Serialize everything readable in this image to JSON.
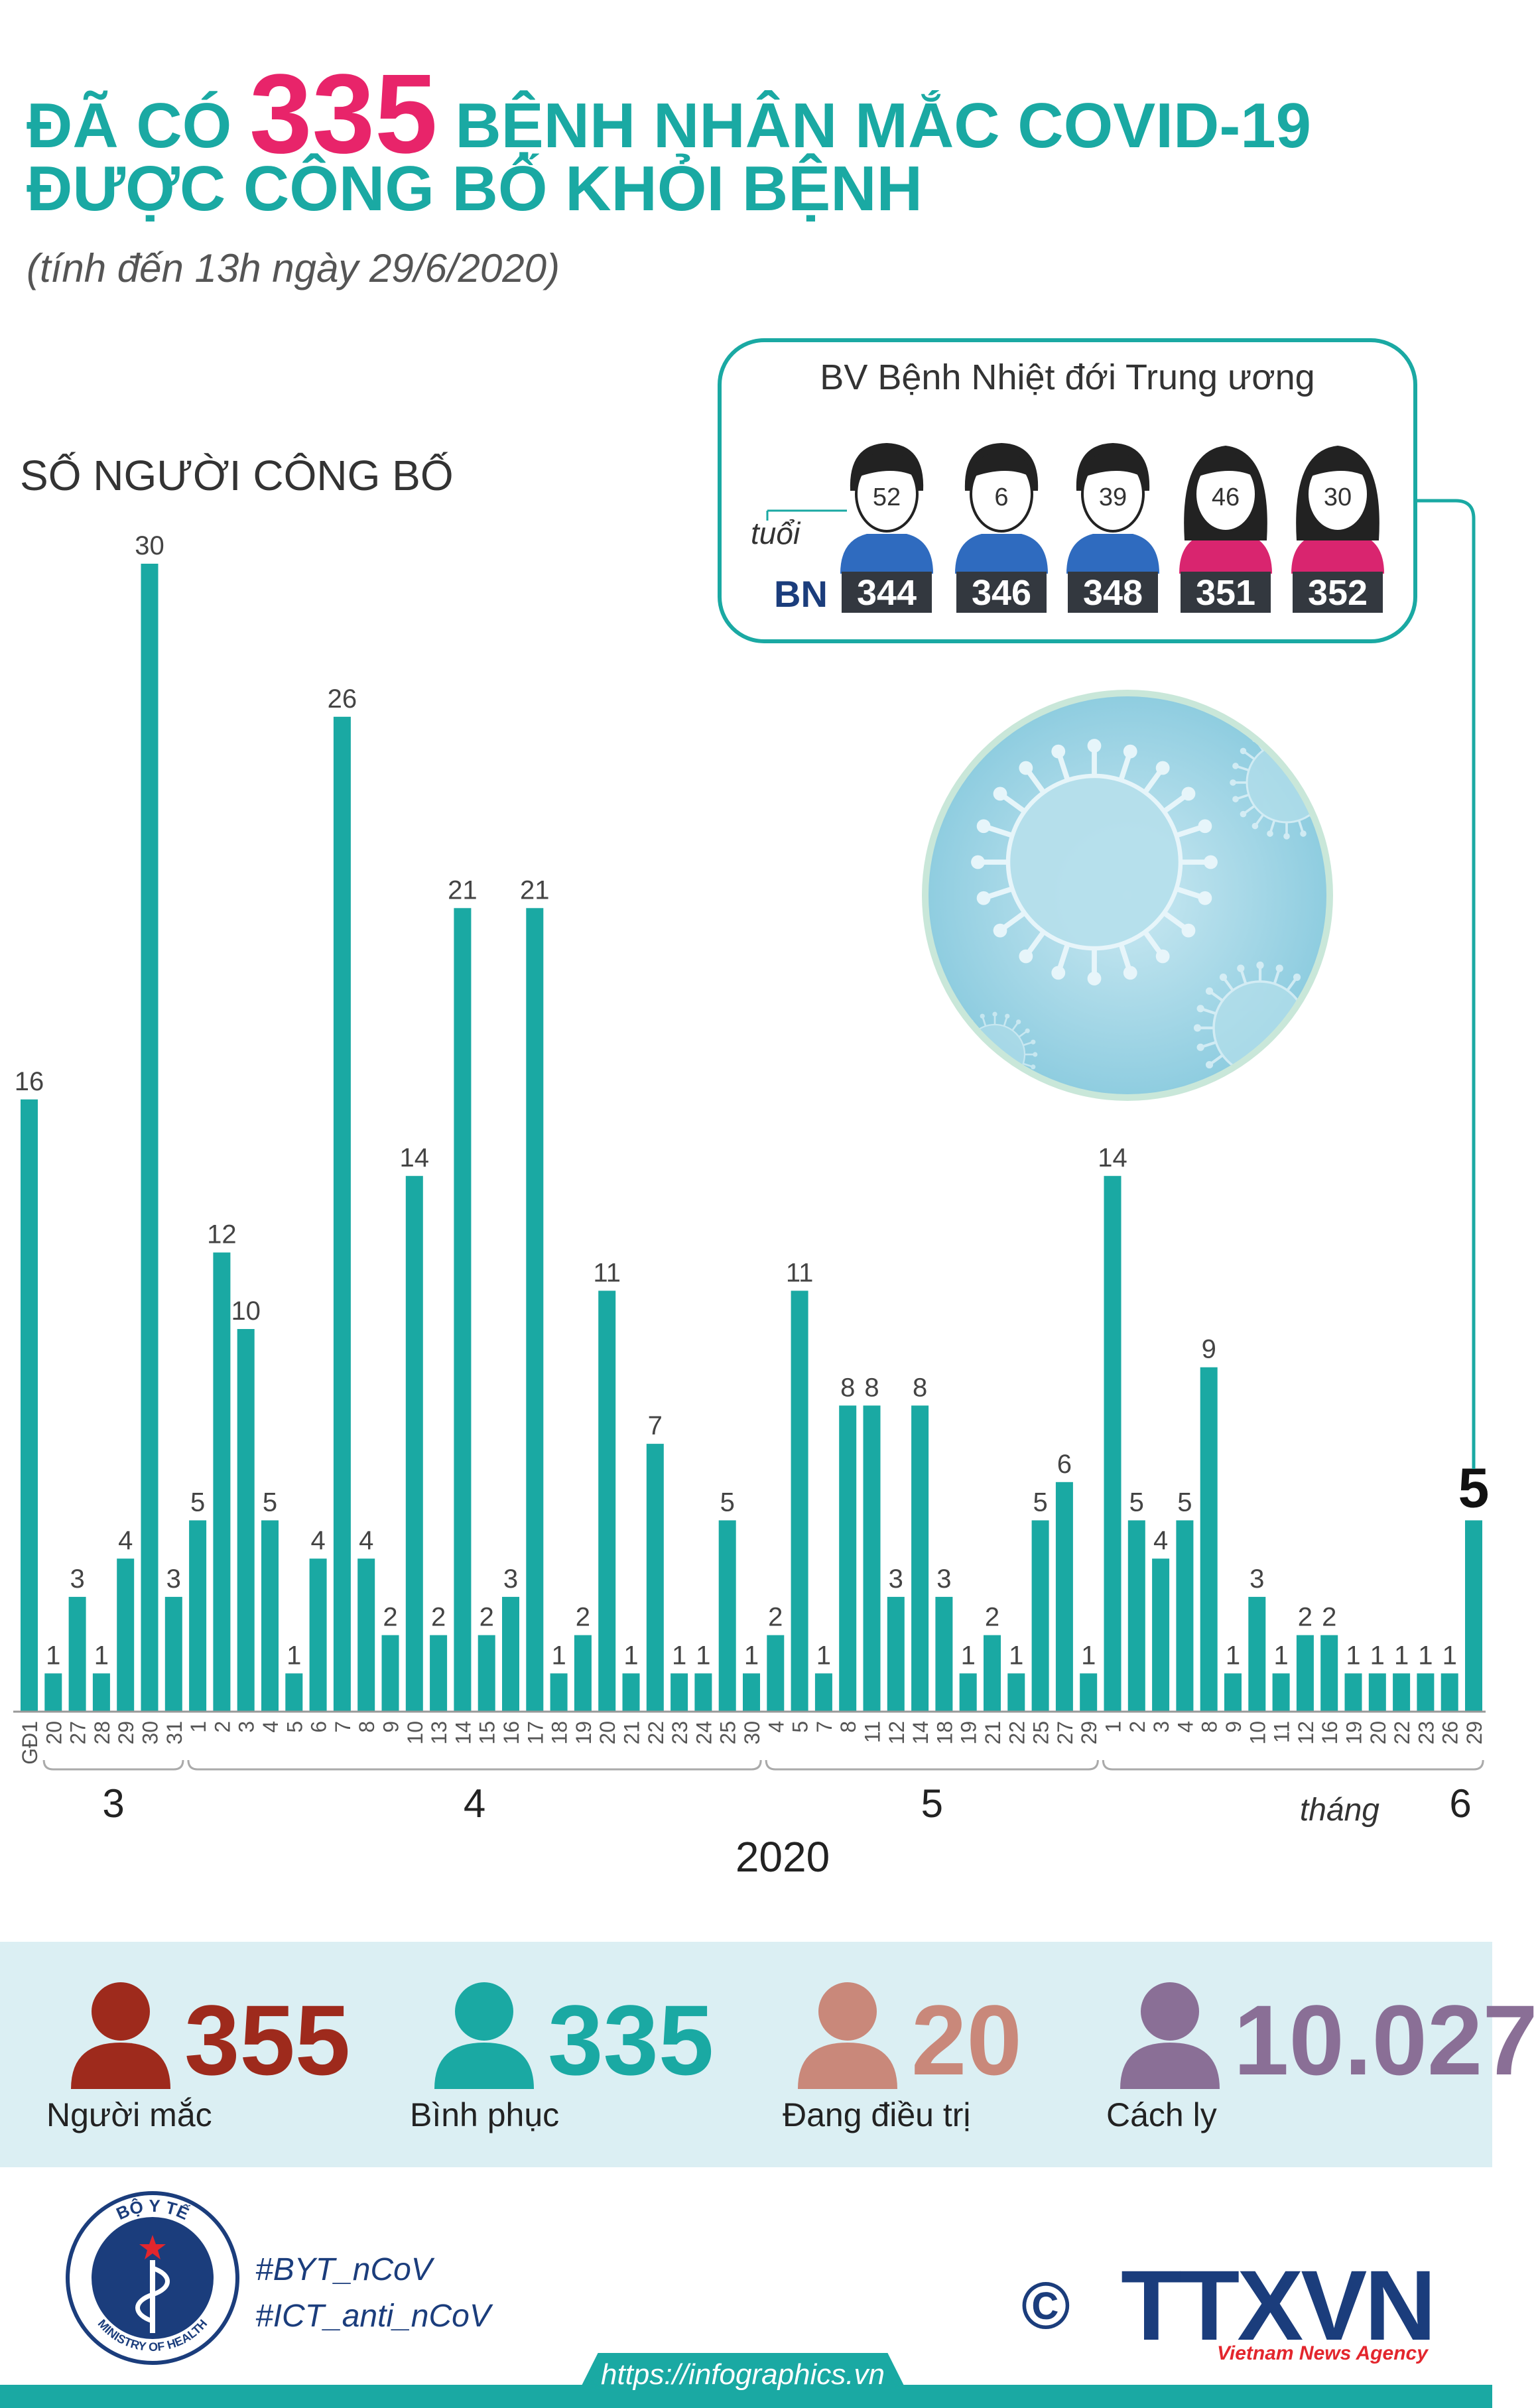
{
  "header": {
    "title_pre": "ĐÃ CÓ",
    "title_number": "335",
    "title_post": "BỆNH NHÂN MẮC COVID-19",
    "title_line2": "ĐƯỢC CÔNG BỐ KHỎI BỆNH",
    "subtitle": "(tính đến 13h ngày 29/6/2020)"
  },
  "chart_data": {
    "type": "bar",
    "ylabel": "SỐ NGƯỜI CÔNG BỐ",
    "categories": [
      "GĐ1",
      "20",
      "27",
      "28",
      "29",
      "30",
      "31",
      "1",
      "2",
      "3",
      "4",
      "5",
      "6",
      "7",
      "8",
      "9",
      "10",
      "13",
      "14",
      "15",
      "16",
      "17",
      "18",
      "19",
      "20",
      "21",
      "22",
      "23",
      "24",
      "25",
      "30",
      "4",
      "5",
      "7",
      "8",
      "11",
      "12",
      "14",
      "18",
      "19",
      "21",
      "22",
      "25",
      "27",
      "29",
      "1",
      "2",
      "3",
      "4",
      "8",
      "9",
      "10",
      "11",
      "12",
      "16",
      "19",
      "20",
      "22",
      "23",
      "26",
      "29"
    ],
    "values": [
      16,
      1,
      3,
      1,
      4,
      30,
      3,
      5,
      12,
      10,
      5,
      1,
      4,
      26,
      4,
      2,
      14,
      2,
      21,
      2,
      3,
      21,
      1,
      2,
      11,
      1,
      7,
      1,
      1,
      5,
      1,
      2,
      11,
      1,
      8,
      8,
      3,
      8,
      3,
      1,
      2,
      1,
      5,
      6,
      1,
      14,
      5,
      4,
      5,
      9,
      1,
      3,
      1,
      2,
      2,
      1,
      1,
      1,
      1,
      1,
      5
    ],
    "highlight_last": true,
    "months": [
      {
        "label": "3",
        "start": 1,
        "end": 6
      },
      {
        "label": "4",
        "start": 7,
        "end": 30
      },
      {
        "label": "5",
        "start": 31,
        "end": 44
      },
      {
        "label": "6",
        "start": 45,
        "end": 60
      }
    ],
    "month_word": "tháng",
    "year": "2020",
    "ylim": [
      0,
      30
    ],
    "grid": false,
    "color": "#1aa9a3"
  },
  "hospital": {
    "title": "BV Bệnh Nhiệt đới Trung ương",
    "age_label": "tuổi",
    "patient_label": "BN",
    "patients": [
      {
        "age": "52",
        "id": "344",
        "gender": "male"
      },
      {
        "age": "6",
        "id": "346",
        "gender": "male"
      },
      {
        "age": "39",
        "id": "348",
        "gender": "male"
      },
      {
        "age": "46",
        "id": "351",
        "gender": "female"
      },
      {
        "age": "30",
        "id": "352",
        "gender": "female"
      }
    ]
  },
  "stats": [
    {
      "value": "355",
      "label": "Người mắc",
      "color": "#9e2a1c"
    },
    {
      "value": "335",
      "label": "Bình phục",
      "color": "#1aa9a3"
    },
    {
      "value": "20",
      "label": "Đang điều trị",
      "color": "#c9887a"
    },
    {
      "value": "10.027",
      "label": "Cách ly",
      "color": "#8a6f96"
    }
  ],
  "footer": {
    "hashtag1": "#BYT_nCoV",
    "hashtag2": "#ICT_anti_nCoV",
    "url": "https://infographics.vn",
    "moh_top": "BỘ Y TẾ",
    "moh_bottom": "MINISTRY OF HEALTH",
    "agency_logo": "TTXVN",
    "agency_name": "Vietnam News Agency",
    "copyright": "©"
  }
}
